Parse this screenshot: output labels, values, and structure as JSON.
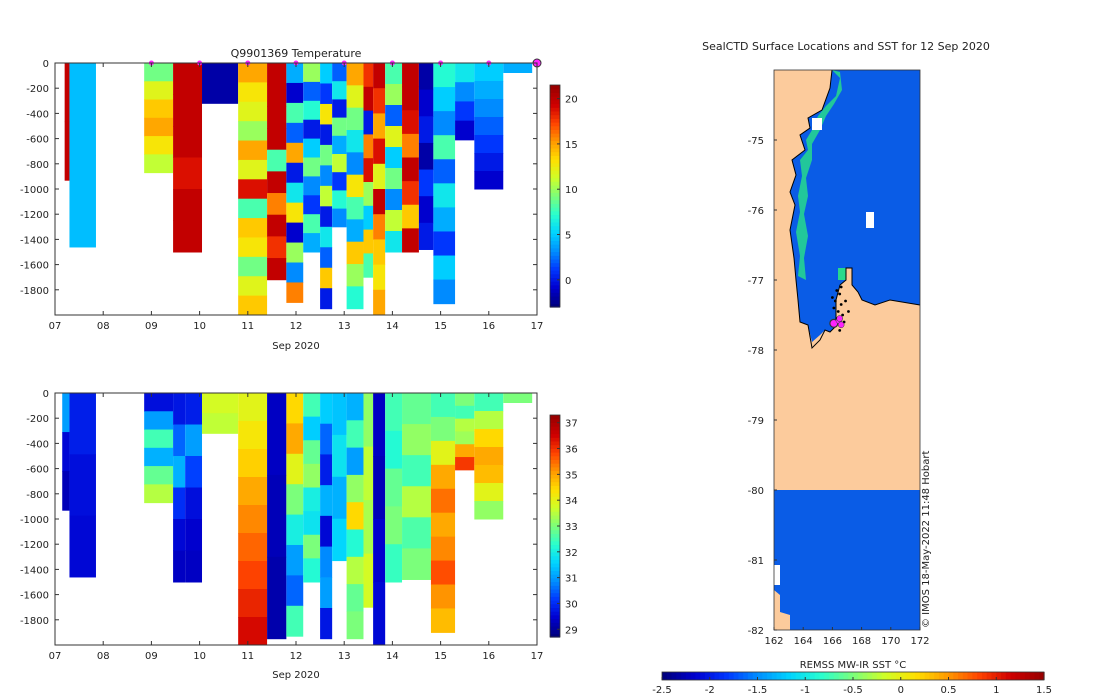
{
  "colors": {
    "jet": [
      "#00007f",
      "#0000d0",
      "#0038ff",
      "#0090ff",
      "#00d4ff",
      "#29ffce",
      "#7bff7b",
      "#ceff29",
      "#ffe000",
      "#ff9a00",
      "#ff4500",
      "#d00000",
      "#9a0000"
    ],
    "land": "#fccb9c",
    "ocean_cold": "#0a5ce6",
    "marker": "#ff22ff",
    "track": "#000000"
  },
  "chart_data": [
    {
      "id": "temperature",
      "type": "heatmap",
      "title": "Q9901369  Temperature",
      "xlabel": "Sep 2020",
      "ylabel": "",
      "x_tick_labels": [
        "07",
        "08",
        "09",
        "10",
        "11",
        "12",
        "13",
        "14",
        "15",
        "16",
        "17"
      ],
      "x_ticks": [
        7,
        8,
        9,
        10,
        11,
        12,
        13,
        14,
        15,
        16,
        17
      ],
      "xlim": [
        7,
        17
      ],
      "ylim": [
        -2000,
        0
      ],
      "y_ticks": [
        0,
        -200,
        -400,
        -600,
        -800,
        -1000,
        -1200,
        -1400,
        -1600,
        -1800
      ],
      "y_tick_labels": [
        "0",
        "-200",
        "-400",
        "-600",
        "-800",
        "-1000",
        "-1200",
        "-1400",
        "-1600",
        "-1800"
      ],
      "colorbar": {
        "min": -3,
        "max": 21.5,
        "ticks": [
          0,
          5,
          10,
          15,
          20
        ],
        "tick_labels": [
          "0",
          "5",
          "10",
          "15",
          "20"
        ]
      },
      "surface_markers_day": [
        9,
        10,
        11,
        12,
        13,
        14,
        15,
        16,
        17
      ],
      "profiles": [
        {
          "x0": 7.2,
          "x1": 7.3,
          "depth": 930,
          "values": [
            20,
            20
          ]
        },
        {
          "x0": 7.3,
          "x1": 7.85,
          "depth": 1460,
          "values": [
            4.5,
            4.5
          ]
        },
        {
          "x0": 8.85,
          "x1": 9.45,
          "depth": 870,
          "values": [
            9,
            12,
            14,
            15,
            13,
            11
          ]
        },
        {
          "x0": 9.45,
          "x1": 10.05,
          "depth": 1500,
          "values": [
            20,
            20,
            20,
            19,
            20,
            20
          ]
        },
        {
          "x0": 10.05,
          "x1": 10.8,
          "depth": 320,
          "values": [
            -2,
            -2
          ]
        },
        {
          "x0": 10.8,
          "x1": 11.4,
          "depth": 2000,
          "values": [
            15,
            13,
            12,
            10,
            15,
            12,
            19,
            8,
            14,
            13,
            9,
            12,
            14
          ]
        },
        {
          "x0": 11.4,
          "x1": 11.8,
          "depth": 1720,
          "values": [
            20,
            20,
            20,
            20,
            8,
            20,
            16,
            20,
            18,
            20
          ]
        },
        {
          "x0": 11.8,
          "x1": 12.15,
          "depth": 1900,
          "values": [
            4,
            -1,
            8,
            2,
            15,
            0,
            6,
            13,
            -1,
            10,
            3,
            16
          ]
        },
        {
          "x0": 12.15,
          "x1": 12.5,
          "depth": 1500,
          "values": [
            10,
            2,
            7,
            0,
            5,
            9,
            3,
            1,
            8,
            4
          ]
        },
        {
          "x0": 12.5,
          "x1": 12.75,
          "depth": 1950,
          "values": [
            5,
            1,
            13,
            0,
            9,
            3,
            11,
            0,
            6,
            2,
            14,
            0
          ]
        },
        {
          "x0": 12.75,
          "x1": 13.05,
          "depth": 1300,
          "values": [
            2,
            6,
            0,
            9,
            4,
            11,
            1,
            7,
            3
          ]
        },
        {
          "x0": 13.05,
          "x1": 13.4,
          "depth": 1950,
          "values": [
            15,
            12,
            9,
            6,
            3,
            13,
            8,
            4,
            14,
            10,
            7
          ]
        },
        {
          "x0": 13.4,
          "x1": 13.6,
          "depth": 1700,
          "values": [
            18,
            20,
            0,
            16,
            19,
            10,
            5,
            14,
            8
          ]
        },
        {
          "x0": 13.6,
          "x1": 13.85,
          "depth": 2000,
          "values": [
            20,
            18,
            15,
            19,
            12,
            20,
            16,
            14,
            13,
            15
          ]
        },
        {
          "x0": 13.85,
          "x1": 14.2,
          "depth": 1500,
          "values": [
            8,
            10,
            2,
            12,
            5,
            9,
            3,
            11,
            6
          ]
        },
        {
          "x0": 14.2,
          "x1": 14.55,
          "depth": 1500,
          "values": [
            20,
            20,
            19,
            16,
            20,
            18,
            14,
            20
          ]
        },
        {
          "x0": 14.55,
          "x1": 14.85,
          "depth": 1480,
          "values": [
            -2,
            -1,
            0,
            -2,
            1,
            -1,
            0
          ]
        },
        {
          "x0": 14.85,
          "x1": 15.3,
          "depth": 1910,
          "values": [
            7,
            5,
            3,
            8,
            2,
            6,
            4,
            1,
            5,
            3
          ]
        },
        {
          "x0": 15.3,
          "x1": 15.7,
          "depth": 610,
          "values": [
            6,
            3,
            1,
            -1
          ]
        },
        {
          "x0": 15.7,
          "x1": 16.3,
          "depth": 1000,
          "values": [
            5,
            4,
            3,
            2,
            1,
            0,
            -1
          ]
        },
        {
          "x0": 16.3,
          "x1": 16.9,
          "depth": 0,
          "values": [
            4
          ]
        }
      ]
    },
    {
      "id": "salinity",
      "type": "heatmap",
      "title": "",
      "xlabel": "Sep 2020",
      "ylabel": "",
      "x_tick_labels": [
        "07",
        "08",
        "09",
        "10",
        "11",
        "12",
        "13",
        "14",
        "15",
        "16",
        "17"
      ],
      "x_ticks": [
        7,
        8,
        9,
        10,
        11,
        12,
        13,
        14,
        15,
        16,
        17
      ],
      "xlim": [
        7,
        17
      ],
      "ylim": [
        -2000,
        0
      ],
      "y_ticks": [
        0,
        -200,
        -400,
        -600,
        -800,
        -1000,
        -1200,
        -1400,
        -1600,
        -1800
      ],
      "y_tick_labels": [
        "0",
        "-200",
        "-400",
        "-600",
        "-800",
        "-1000",
        "-1200",
        "-1400",
        "-1600",
        "-1800"
      ],
      "colorbar": {
        "min": 28.7,
        "max": 37.3,
        "ticks": [
          29,
          30,
          31,
          32,
          33,
          34,
          35,
          36,
          37
        ],
        "tick_labels": [
          "29",
          "30",
          "31",
          "32",
          "33",
          "34",
          "35",
          "36",
          "37"
        ]
      },
      "profiles": [
        {
          "x0": 7.15,
          "x1": 7.3,
          "depth": 930,
          "values": [
            31,
            29.5,
            29.2
          ]
        },
        {
          "x0": 7.3,
          "x1": 7.85,
          "depth": 1460,
          "values": [
            29.8,
            29.6,
            29.5
          ]
        },
        {
          "x0": 8.85,
          "x1": 9.45,
          "depth": 870,
          "values": [
            29.6,
            31,
            32.5,
            31.2,
            32.8,
            33.5
          ]
        },
        {
          "x0": 9.45,
          "x1": 9.7,
          "depth": 1500,
          "values": [
            29.7,
            30.5,
            31.2,
            30,
            29.5,
            29.3
          ]
        },
        {
          "x0": 9.7,
          "x1": 10.05,
          "depth": 1500,
          "values": [
            29.8,
            31,
            30.2,
            29.6,
            29.4,
            29.3
          ]
        },
        {
          "x0": 10.05,
          "x1": 10.8,
          "depth": 320,
          "values": [
            33.8,
            33.6
          ]
        },
        {
          "x0": 10.8,
          "x1": 11.4,
          "depth": 2000,
          "values": [
            34,
            34.3,
            34.6,
            35,
            35.3,
            35.6,
            35.9,
            36.2,
            36.5
          ]
        },
        {
          "x0": 11.4,
          "x1": 11.8,
          "depth": 1950,
          "values": [
            29.3,
            29.2,
            29.1
          ]
        },
        {
          "x0": 11.8,
          "x1": 12.15,
          "depth": 1930,
          "values": [
            34.5,
            35,
            34,
            33,
            32,
            31,
            30.5,
            32.5
          ]
        },
        {
          "x0": 12.15,
          "x1": 12.5,
          "depth": 1500,
          "values": [
            32.5,
            31.5,
            32.8,
            33.2,
            32,
            31.8,
            33,
            32.2
          ]
        },
        {
          "x0": 12.5,
          "x1": 12.75,
          "depth": 1950,
          "values": [
            31.5,
            30.5,
            29.8,
            31.2,
            29.5,
            30.8,
            31,
            29.7
          ]
        },
        {
          "x0": 12.75,
          "x1": 13.05,
          "depth": 1330,
          "values": [
            31.4,
            31.8,
            31.2,
            31.6
          ]
        },
        {
          "x0": 13.05,
          "x1": 13.4,
          "depth": 1950,
          "values": [
            31.2,
            32.5,
            31,
            33.2,
            34.5,
            32.2,
            33.5,
            32.8,
            33
          ]
        },
        {
          "x0": 13.4,
          "x1": 13.6,
          "depth": 1700,
          "values": [
            33.2,
            33.6,
            33.4,
            33.8
          ]
        },
        {
          "x0": 13.6,
          "x1": 13.85,
          "depth": 2000,
          "values": [
            29.3,
            29.2,
            29.4,
            29.5
          ]
        },
        {
          "x0": 13.85,
          "x1": 14.2,
          "depth": 1500,
          "values": [
            32.5,
            32.2,
            32.8,
            33,
            32.4
          ]
        },
        {
          "x0": 14.2,
          "x1": 14.8,
          "depth": 1480,
          "values": [
            32.8,
            33.2,
            32.5,
            33.5,
            32.6,
            33
          ]
        },
        {
          "x0": 14.8,
          "x1": 15.3,
          "depth": 1900,
          "values": [
            32.5,
            33,
            34,
            35,
            35.5,
            35,
            35.3,
            35.8,
            35.2,
            34.8
          ]
        },
        {
          "x0": 15.3,
          "x1": 15.7,
          "depth": 610,
          "values": [
            33,
            32.5,
            33.5,
            33.3,
            35,
            36
          ]
        },
        {
          "x0": 15.7,
          "x1": 16.3,
          "depth": 1000,
          "values": [
            32.5,
            33.5,
            34.5,
            35,
            34.8,
            34,
            33.2
          ]
        },
        {
          "x0": 16.3,
          "x1": 16.9,
          "depth": 0,
          "values": [
            33
          ]
        }
      ]
    },
    {
      "id": "map",
      "type": "heatmap",
      "title": "SealCTD Surface Locations and SST for 12 Sep 2020",
      "xlabel": "",
      "ylabel": "",
      "xlim": [
        162,
        172
      ],
      "ylim": [
        -82,
        -74
      ],
      "x_ticks": [
        162,
        164,
        166,
        168,
        170,
        172
      ],
      "x_tick_labels": [
        "162",
        "164",
        "166",
        "168",
        "170",
        "172"
      ],
      "y_ticks": [
        -75,
        -76,
        -77,
        -78,
        -79,
        -80,
        -81,
        -82
      ],
      "y_tick_labels": [
        "-75",
        "-76",
        "-77",
        "-78",
        "-79",
        "-80",
        "-81",
        "-82"
      ],
      "colorbar": {
        "label": "REMSS MW-IR SST °C",
        "min": -2.5,
        "max": 1.5,
        "ticks": [
          -2.5,
          -2,
          -1.5,
          -1,
          -0.5,
          0,
          0.5,
          1,
          1.5
        ],
        "tick_labels": [
          "-2.5",
          "-2",
          "-1.5",
          "-1",
          "-0.5",
          "0",
          "0.5",
          "1",
          "1.5"
        ]
      },
      "sst_ocean_value": -1.9,
      "observations": [
        {
          "lon": 166.1,
          "lat": -77.62
        },
        {
          "lon": 166.45,
          "lat": -77.58
        },
        {
          "lon": 166.6,
          "lat": -77.64
        },
        {
          "lon": 166.5,
          "lat": -77.55
        }
      ],
      "track": [
        {
          "lon": 166.3,
          "lat": -77.15
        },
        {
          "lon": 166.5,
          "lat": -77.2
        },
        {
          "lon": 166.2,
          "lat": -77.3
        },
        {
          "lon": 166.6,
          "lat": -77.35
        },
        {
          "lon": 166.4,
          "lat": -77.45
        },
        {
          "lon": 166.7,
          "lat": -77.5
        },
        {
          "lon": 166.3,
          "lat": -77.55
        },
        {
          "lon": 166.8,
          "lat": -77.6
        },
        {
          "lon": 166.5,
          "lat": -77.72
        },
        {
          "lon": 166.9,
          "lat": -77.3
        },
        {
          "lon": 167.1,
          "lat": -77.45
        },
        {
          "lon": 166.1,
          "lat": -77.4
        },
        {
          "lon": 166.0,
          "lat": -77.25
        },
        {
          "lon": 166.6,
          "lat": -77.1
        }
      ],
      "credit": "© IMOS 18-May-2022 11:48 Hobart"
    }
  ]
}
